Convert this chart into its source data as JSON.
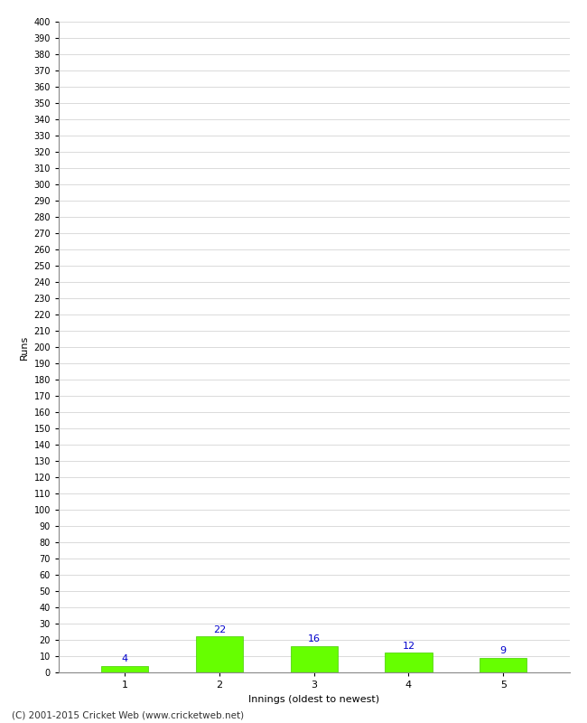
{
  "categories": [
    1,
    2,
    3,
    4,
    5
  ],
  "values": [
    4,
    22,
    16,
    12,
    9
  ],
  "bar_color": "#66ff00",
  "bar_edge_color": "#44cc00",
  "label_color": "#0000cc",
  "xlabel": "Innings (oldest to newest)",
  "ylabel": "Runs",
  "ylim": [
    0,
    400
  ],
  "background_color": "#ffffff",
  "grid_color": "#cccccc",
  "footer": "(C) 2001-2015 Cricket Web (www.cricketweb.net)"
}
